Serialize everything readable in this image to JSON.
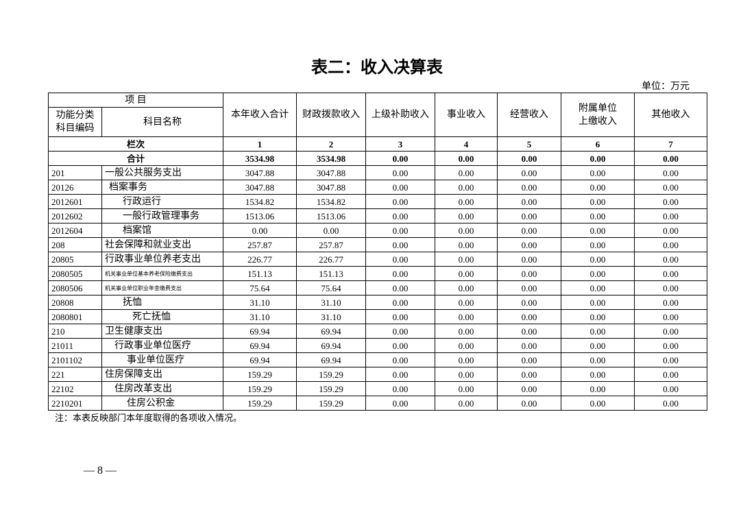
{
  "title": "表二：收入决算表",
  "unit": "单位：万元",
  "header": {
    "item": "项 目",
    "code_label": [
      "功能分类",
      "科目编码"
    ],
    "name_label": "科目名称",
    "columns": [
      "本年收入合计",
      "财政拨款收入",
      "上级补助收入",
      "事业收入",
      "经营收入",
      [
        "附属单位",
        "上缴收入"
      ],
      "其他收入"
    ]
  },
  "column_index": {
    "label": "栏次",
    "numbers": [
      "1",
      "2",
      "3",
      "4",
      "5",
      "6",
      "7"
    ]
  },
  "total": {
    "label": "合计",
    "values": [
      "3534.98",
      "3534.98",
      "0.00",
      "0.00",
      "0.00",
      "0.00",
      "0.00"
    ]
  },
  "rows": [
    {
      "code": "201",
      "name": "一般公共服务支出",
      "values": [
        "3047.88",
        "3047.88",
        "0.00",
        "0.00",
        "0.00",
        "0.00",
        "0.00"
      ]
    },
    {
      "code": "20126",
      "name": "档案事务",
      "values": [
        "3047.88",
        "3047.88",
        "0.00",
        "0.00",
        "0.00",
        "0.00",
        "0.00"
      ]
    },
    {
      "code": "2012601",
      "name": "行政运行",
      "values": [
        "1534.82",
        "1534.82",
        "0.00",
        "0.00",
        "0.00",
        "0.00",
        "0.00"
      ]
    },
    {
      "code": "2012602",
      "name": "一般行政管理事务",
      "values": [
        "1513.06",
        "1513.06",
        "0.00",
        "0.00",
        "0.00",
        "0.00",
        "0.00"
      ]
    },
    {
      "code": "2012604",
      "name": "档案馆",
      "values": [
        "0.00",
        "0.00",
        "0.00",
        "0.00",
        "0.00",
        "0.00",
        "0.00"
      ]
    },
    {
      "code": "208",
      "name": "社会保障和就业支出",
      "values": [
        "257.87",
        "257.87",
        "0.00",
        "0.00",
        "0.00",
        "0.00",
        "0.00"
      ]
    },
    {
      "code": "20805",
      "name": "行政事业单位养老支出",
      "values": [
        "226.77",
        "226.77",
        "0.00",
        "0.00",
        "0.00",
        "0.00",
        "0.00"
      ]
    },
    {
      "code": "2080505",
      "name": "机关事业单位基本养老保险缴费支出",
      "values": [
        "151.13",
        "151.13",
        "0.00",
        "0.00",
        "0.00",
        "0.00",
        "0.00"
      ]
    },
    {
      "code": "2080506",
      "name": "机关事业单位职业年金缴费支出",
      "values": [
        "75.64",
        "75.64",
        "0.00",
        "0.00",
        "0.00",
        "0.00",
        "0.00"
      ]
    },
    {
      "code": "20808",
      "name": "抚恤",
      "values": [
        "31.10",
        "31.10",
        "0.00",
        "0.00",
        "0.00",
        "0.00",
        "0.00"
      ]
    },
    {
      "code": "2080801",
      "name": "死亡抚恤",
      "values": [
        "31.10",
        "31.10",
        "0.00",
        "0.00",
        "0.00",
        "0.00",
        "0.00"
      ]
    },
    {
      "code": "210",
      "name": "卫生健康支出",
      "values": [
        "69.94",
        "69.94",
        "0.00",
        "0.00",
        "0.00",
        "0.00",
        "0.00"
      ]
    },
    {
      "code": "21011",
      "name": "行政事业单位医疗",
      "values": [
        "69.94",
        "69.94",
        "0.00",
        "0.00",
        "0.00",
        "0.00",
        "0.00"
      ]
    },
    {
      "code": "2101102",
      "name": "事业单位医疗",
      "values": [
        "69.94",
        "69.94",
        "0.00",
        "0.00",
        "0.00",
        "0.00",
        "0.00"
      ]
    },
    {
      "code": "221",
      "name": "住房保障支出",
      "values": [
        "159.29",
        "159.29",
        "0.00",
        "0.00",
        "0.00",
        "0.00",
        "0.00"
      ]
    },
    {
      "code": "22102",
      "name": "住房改革支出",
      "values": [
        "159.29",
        "159.29",
        "0.00",
        "0.00",
        "0.00",
        "0.00",
        "0.00"
      ]
    },
    {
      "code": "2210201",
      "name": "住房公积金",
      "values": [
        "159.29",
        "159.29",
        "0.00",
        "0.00",
        "0.00",
        "0.00",
        "0.00"
      ]
    }
  ],
  "note": "注：本表反映部门本年度取得的各项收入情况。",
  "page_number": "— 8 —"
}
